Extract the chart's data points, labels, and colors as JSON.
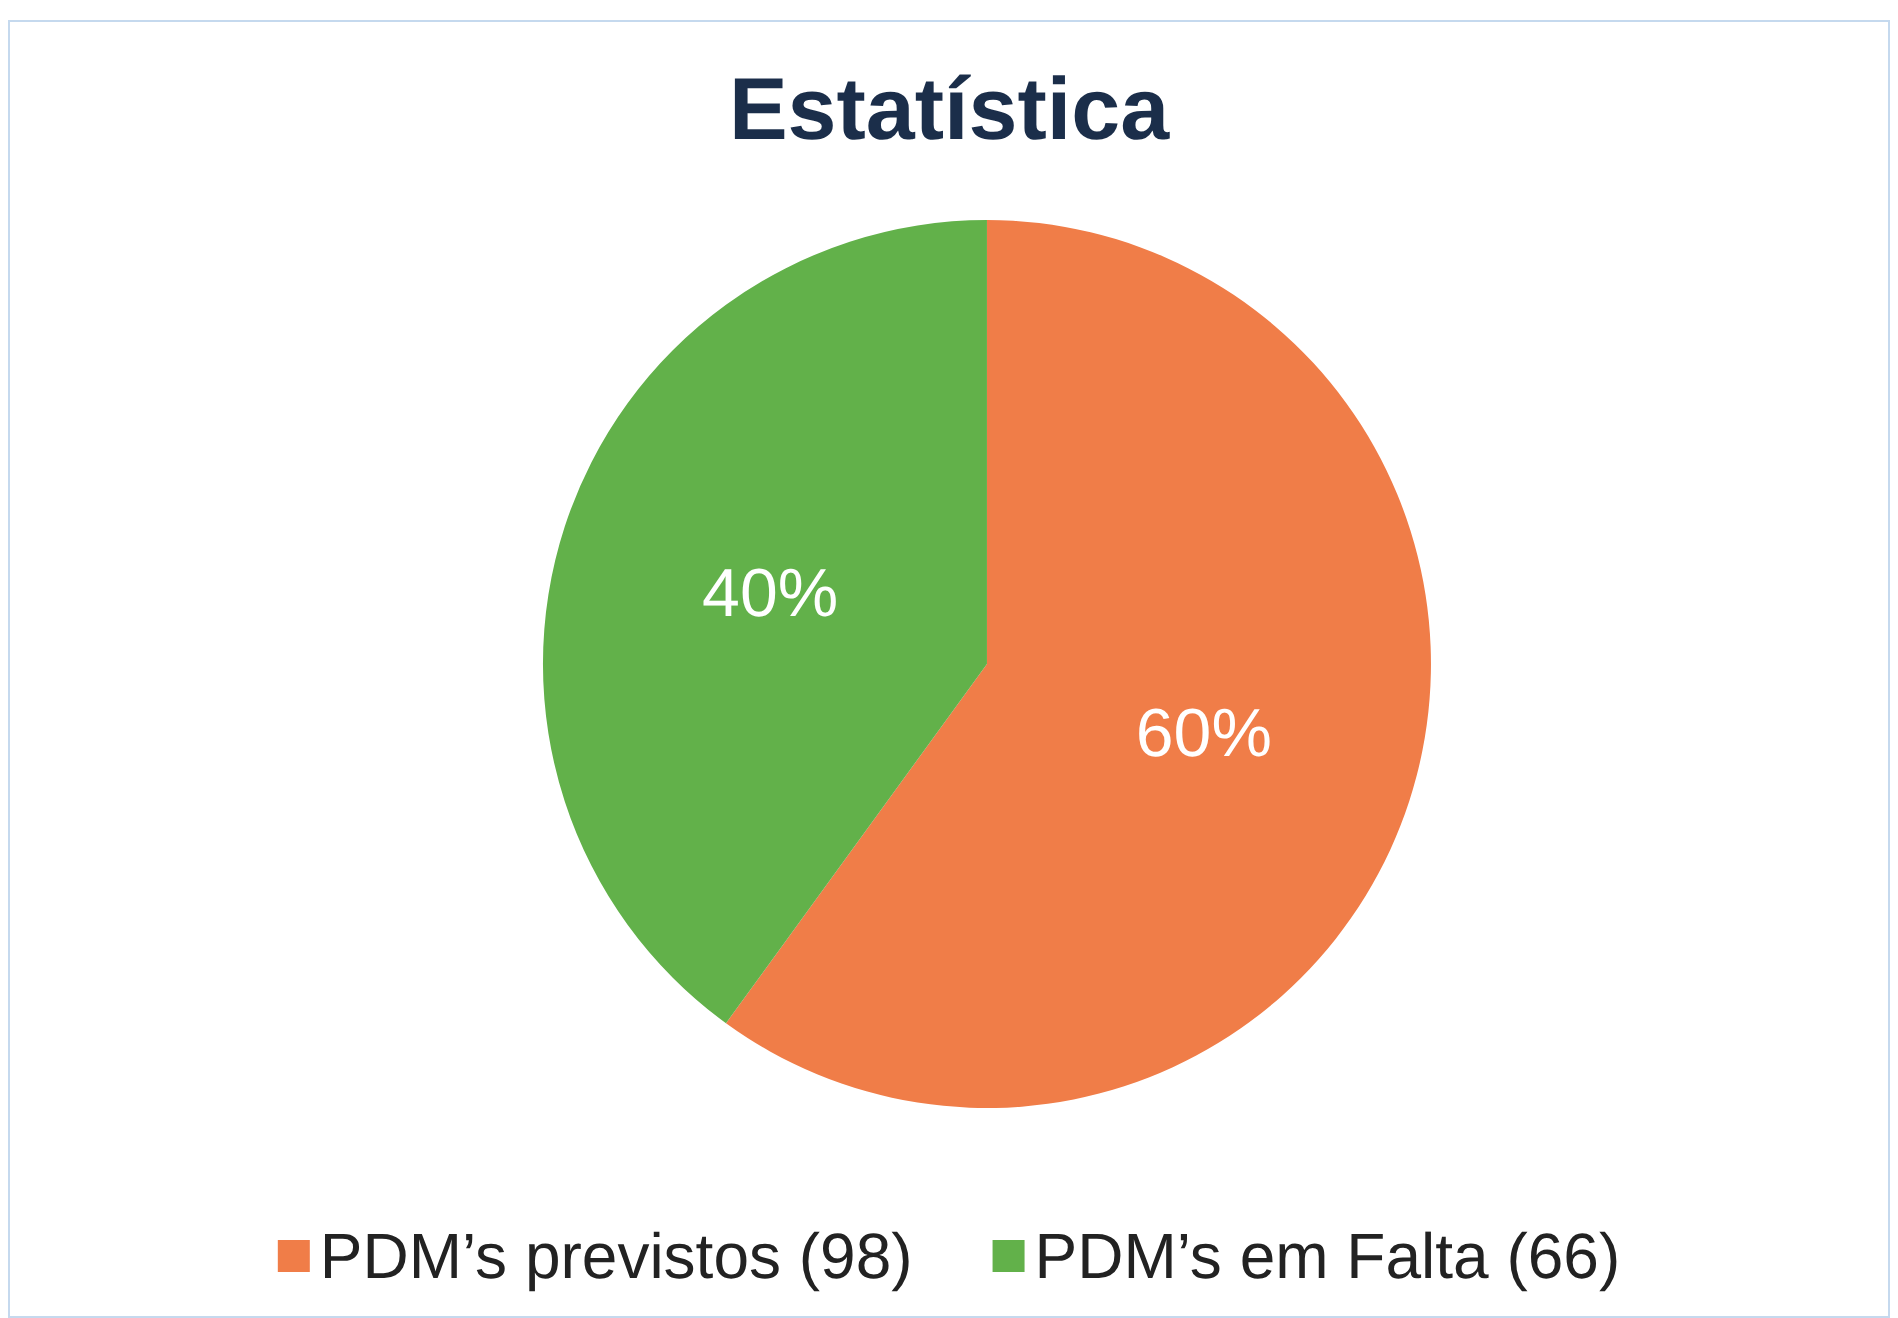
{
  "chart_data": {
    "type": "pie",
    "title": "Estatística",
    "categories": [
      "PDM’s previstos (98)",
      "PDM’s em Falta (66)"
    ],
    "values": [
      60,
      40
    ],
    "colors": [
      "#f07d48",
      "#62b14a"
    ],
    "value_labels": [
      "60%",
      "40%"
    ],
    "legend": "bottom"
  }
}
